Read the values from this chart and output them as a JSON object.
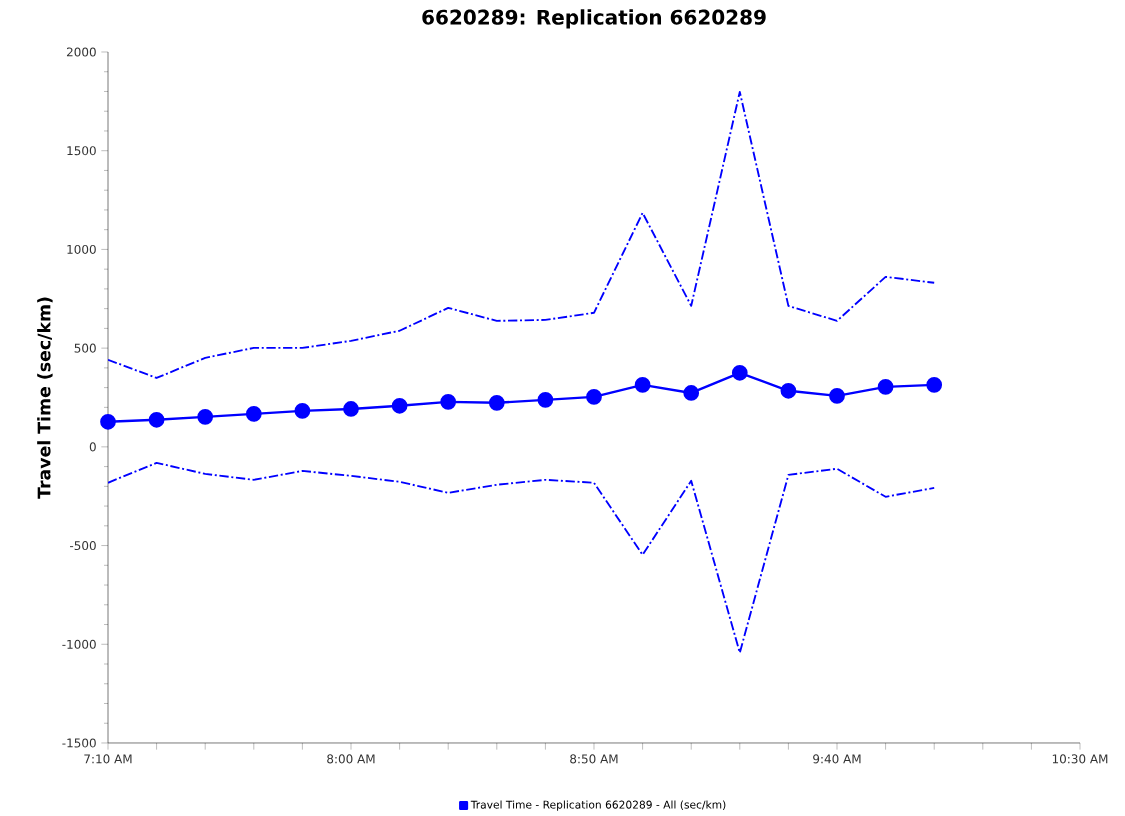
{
  "chart_data": {
    "type": "line",
    "title": "6620289: Replication 6620289",
    "ylabel": "Travel Time (sec/km)",
    "x": [
      7.1667,
      7.3333,
      7.5,
      7.6667,
      7.8333,
      8.0,
      8.1667,
      8.3333,
      8.5,
      8.6667,
      8.8333,
      9.0,
      9.1667,
      9.3333,
      9.5,
      9.6667,
      9.8333,
      10.0
    ],
    "series": [
      {
        "name": "Travel Time - Replication 6620289 - All (sec/km)",
        "color": "#0000ff",
        "marker": "circle",
        "line_style": "solid",
        "values": [
          127,
          137,
          152,
          167,
          182,
          192,
          208,
          228,
          223,
          238,
          253,
          314,
          273,
          375,
          284,
          258,
          304,
          314
        ]
      },
      {
        "color": "#0000ff",
        "marker": "none",
        "line_style": "dashed",
        "values": [
          441,
          349,
          451,
          501,
          501,
          537,
          588,
          704,
          638,
          643,
          679,
          1185,
          714,
          1798,
          714,
          638,
          861,
          831
        ]
      },
      {
        "color": "#0000ff",
        "marker": "none",
        "line_style": "dashed",
        "values": [
          -182,
          -81,
          -137,
          -167,
          -122,
          -147,
          -177,
          -233,
          -192,
          -167,
          -182,
          -547,
          -172,
          -1043,
          -142,
          -111,
          -253,
          -208
        ]
      }
    ],
    "xlim": [
      7.1667,
      10.5
    ],
    "xticks": [
      {
        "value": 7.1667,
        "label": "7:10 AM"
      },
      {
        "value": 7.3333,
        "label": null
      },
      {
        "value": 7.5,
        "label": null
      },
      {
        "value": 7.6667,
        "label": null
      },
      {
        "value": 7.8333,
        "label": null
      },
      {
        "value": 8.0,
        "label": "8:00 AM"
      },
      {
        "value": 8.1667,
        "label": null
      },
      {
        "value": 8.3333,
        "label": null
      },
      {
        "value": 8.5,
        "label": null
      },
      {
        "value": 8.6667,
        "label": null
      },
      {
        "value": 8.8333,
        "label": "8:50 AM"
      },
      {
        "value": 9.0,
        "label": null
      },
      {
        "value": 9.1667,
        "label": null
      },
      {
        "value": 9.3333,
        "label": null
      },
      {
        "value": 9.5,
        "label": null
      },
      {
        "value": 9.6667,
        "label": "9:40 AM"
      },
      {
        "value": 9.8333,
        "label": null
      },
      {
        "value": 10.0,
        "label": null
      },
      {
        "value": 10.1667,
        "label": null
      },
      {
        "value": 10.3333,
        "label": null
      },
      {
        "value": 10.5,
        "label": "10:30 AM"
      }
    ],
    "ylim": [
      -1500,
      2000
    ],
    "yticks": [
      -1500,
      -1000,
      -500,
      0,
      500,
      1000,
      1500,
      2000
    ],
    "legend": "bottom"
  }
}
